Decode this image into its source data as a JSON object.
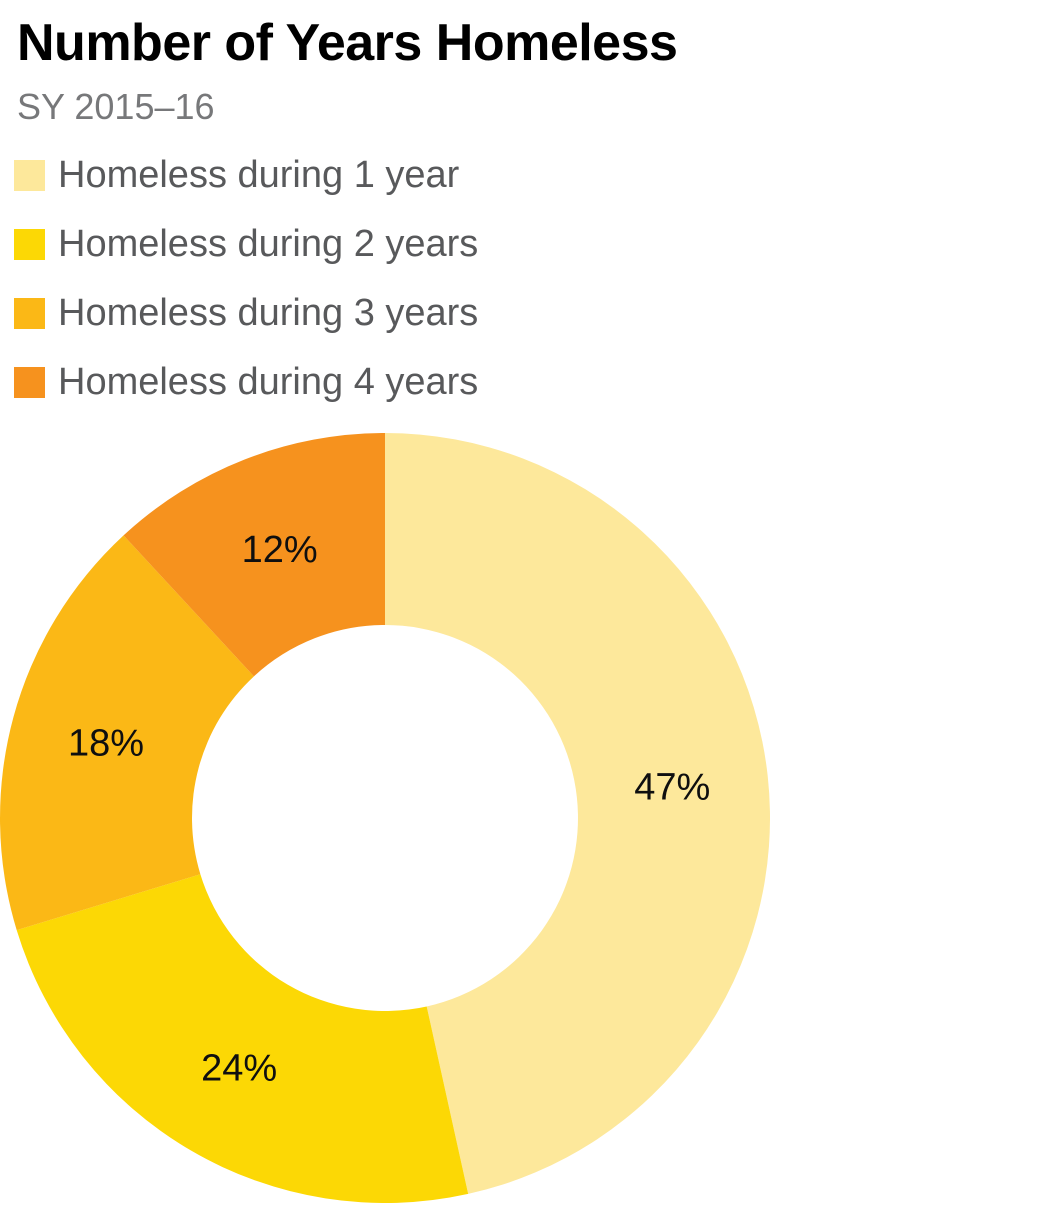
{
  "header": {
    "title": "Number of Years Homeless",
    "subtitle": "SY 2015–16"
  },
  "legend": {
    "position": "top-left",
    "items": [
      {
        "label": "Homeless during 1 year",
        "color": "#FDE89B"
      },
      {
        "label": "Homeless during 2 years",
        "color": "#FCD805"
      },
      {
        "label": "Homeless during 3 years",
        "color": "#FBB816"
      },
      {
        "label": "Homeless during 4 years",
        "color": "#F6921E"
      }
    ]
  },
  "chart_data": {
    "type": "pie",
    "subtype": "donut",
    "title": "Number of Years Homeless",
    "subtitle": "SY 2015–16",
    "categories": [
      "Homeless during 1 year",
      "Homeless during 2 years",
      "Homeless during 3 years",
      "Homeless during 4 years"
    ],
    "values": [
      47,
      24,
      18,
      12
    ],
    "unit": "percent",
    "slice_labels": [
      "47%",
      "24%",
      "18%",
      "12%"
    ],
    "colors": [
      "#FDE89B",
      "#FCD805",
      "#FBB816",
      "#F6921E"
    ],
    "slice_label_color": "#0f0f0f",
    "start_angle_deg": 0,
    "direction": "clockwise",
    "inner_radius_ratio": 0.5,
    "legend_position": "top-left",
    "grid": false
  }
}
